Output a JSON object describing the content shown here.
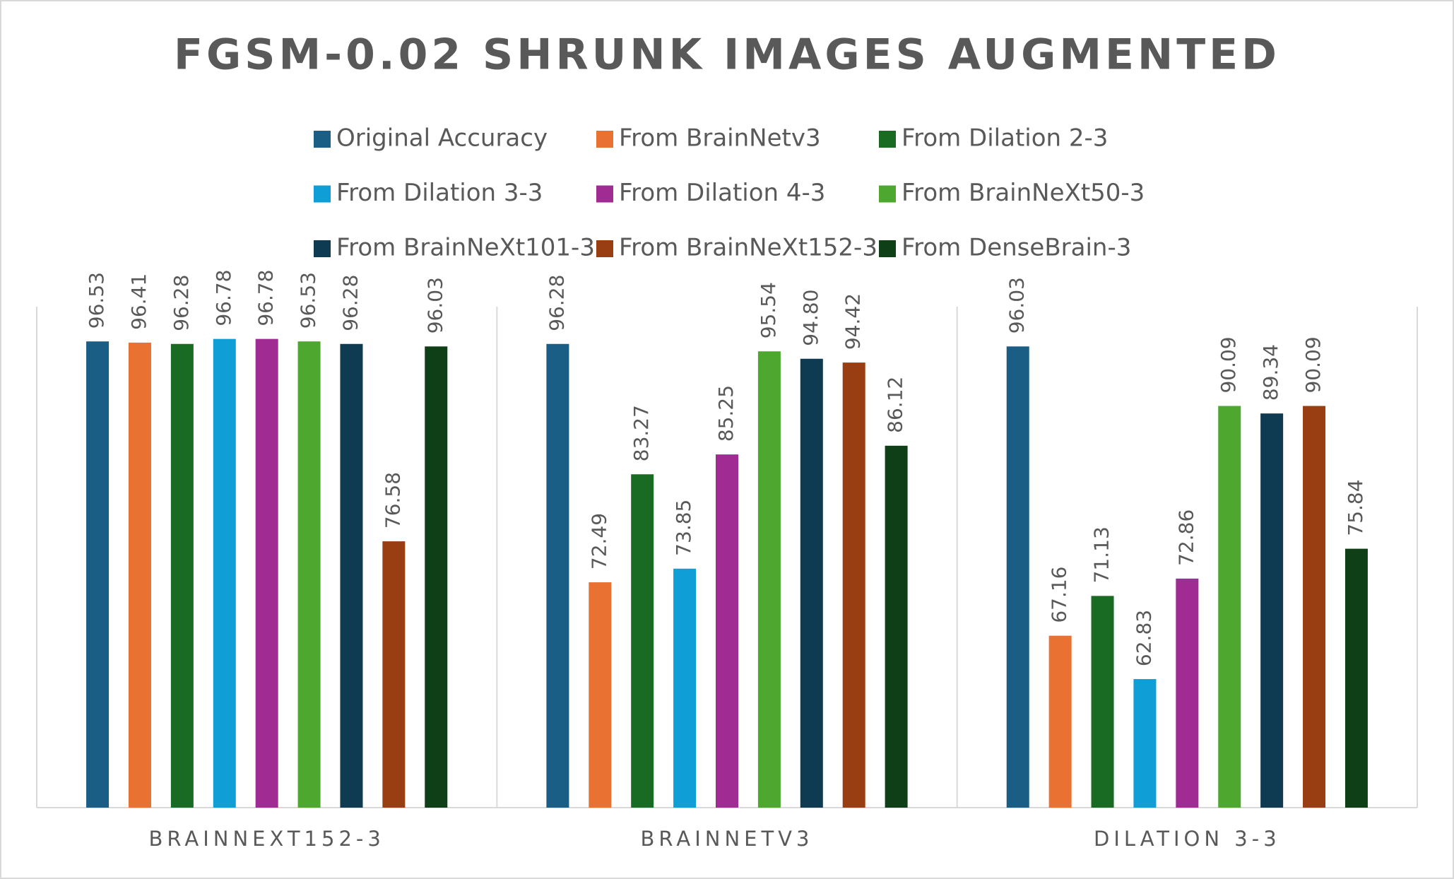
{
  "chart_data": {
    "type": "bar",
    "title": "FGSM-0.02 SHRUNK IMAGES AUGMENTED",
    "categories": [
      "BRAINNEXT152-3",
      "BRAINNETV3",
      "DILATION 3-3"
    ],
    "ylim": [
      50,
      100
    ],
    "series": [
      {
        "name": "Original Accuracy",
        "color": "#1a5e85",
        "values": [
          96.53,
          96.28,
          96.03
        ]
      },
      {
        "name": "From BrainNetv3",
        "color": "#e97132",
        "values": [
          96.41,
          72.49,
          67.16
        ]
      },
      {
        "name": "From Dilation 2-3",
        "color": "#196b24",
        "values": [
          96.28,
          83.27,
          71.13
        ]
      },
      {
        "name": "From Dilation 3-3",
        "color": "#0f9ed5",
        "values": [
          96.78,
          73.85,
          62.83
        ]
      },
      {
        "name": "From Dilation 4-3",
        "color": "#a02b93",
        "values": [
          96.78,
          85.25,
          72.86
        ]
      },
      {
        "name": "From BrainNeXt50-3",
        "color": "#4ea72e",
        "values": [
          96.53,
          95.54,
          90.09
        ]
      },
      {
        "name": "From BrainNeXt101-3",
        "color": "#0e3a52",
        "values": [
          96.28,
          94.8,
          89.34
        ],
        "value_labels": [
          "96.28",
          "94.80",
          "89.34"
        ]
      },
      {
        "name": "From BrainNeXt152-3",
        "color": "#983e12",
        "values": [
          76.58,
          94.42,
          90.09
        ]
      },
      {
        "name": "From DenseBrain-3",
        "color": "#0f3f16",
        "values": [
          96.03,
          86.12,
          75.84
        ]
      }
    ]
  }
}
